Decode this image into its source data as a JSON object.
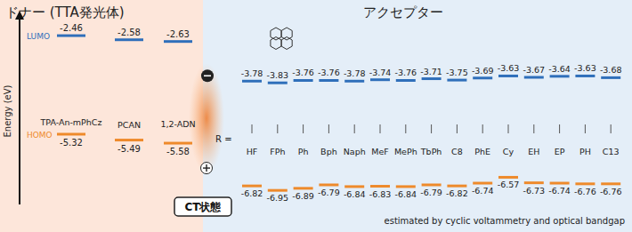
{
  "chart_data": {
    "type": "energy_level",
    "y_label": "Energy (eV)",
    "ylim": [
      -7.1,
      -2.2
    ],
    "tick_labels": false,
    "data_labels": true,
    "donors": {
      "title": "ドナー (TTA発光体)",
      "categories": [
        "TPA-An-mPhCz",
        "PCAN",
        "1,2-ADN"
      ],
      "series": [
        {
          "name": "LUMO",
          "color": "#2f6fba",
          "values": [
            -2.46,
            -2.58,
            -2.63
          ]
        },
        {
          "name": "HOMO",
          "color": "#ee8a2b",
          "values": [
            -5.32,
            -5.49,
            -5.58
          ]
        }
      ]
    },
    "acceptors": {
      "title": "アクセプター",
      "prefix": "R =",
      "categories": [
        "HF",
        "FPh",
        "Ph",
        "Bph",
        "Naph",
        "MeF",
        "MePh",
        "TbPh",
        "C8",
        "PhE",
        "Cy",
        "EH",
        "EP",
        "PH",
        "C13"
      ],
      "series": [
        {
          "color": "#2f6fba",
          "values": [
            -3.78,
            -3.83,
            -3.76,
            -3.76,
            -3.78,
            -3.74,
            -3.76,
            -3.71,
            -3.75,
            -3.69,
            -3.63,
            -3.67,
            -3.64,
            -3.63,
            -3.68
          ]
        },
        {
          "color": "#ee8a2b",
          "values": [
            -6.82,
            -6.95,
            -6.89,
            -6.79,
            -6.84,
            -6.83,
            -6.84,
            -6.79,
            -6.82,
            -6.74,
            -6.57,
            -6.73,
            -6.74,
            -6.76,
            -6.76
          ]
        }
      ]
    },
    "annotations": [
      "CT状態"
    ],
    "footnote": "estimated by cyclic voltammetry and optical bandgap"
  }
}
